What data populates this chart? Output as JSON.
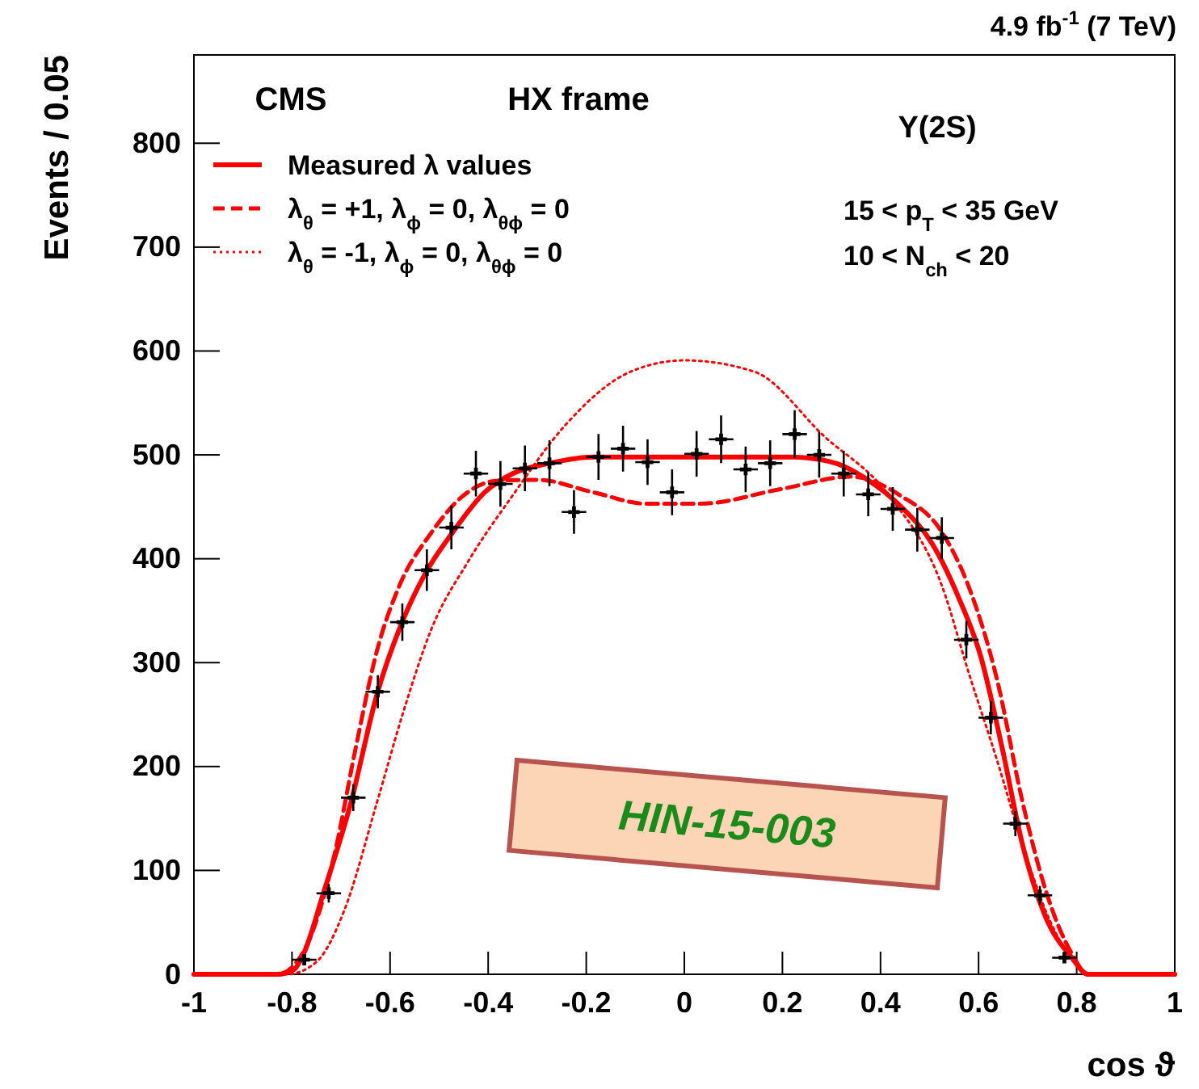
{
  "chart_data": {
    "type": "line",
    "title": "4.9 fb$^{-1}$   (7 TeV)",
    "xlabel": "cos ϑ",
    "ylabel": "Events / 0.05",
    "xlim": [
      -1,
      1
    ],
    "xticks": [
      -1,
      -0.8,
      -0.6,
      -0.4,
      -0.2,
      0,
      0.2,
      0.4,
      0.6,
      0.8,
      1
    ],
    "ylim": [
      0,
      885
    ],
    "yticks": [
      0,
      100,
      200,
      300,
      400,
      500,
      600,
      700,
      800
    ],
    "grid": false,
    "legend": "top left",
    "annotations": [
      "CMS",
      "HX frame",
      "Υ(2S)",
      "15 < p$_{T}$ < 35 GeV",
      "10 < N$_{ch}$ < 20",
      "HIN-15-003"
    ],
    "series": [
      {
        "type": "scatter",
        "color": "#000000",
        "marker": "cross",
        "x": [
          -0.775,
          -0.725,
          -0.675,
          -0.625,
          -0.575,
          -0.525,
          -0.475,
          -0.425,
          -0.375,
          -0.325,
          -0.275,
          -0.225,
          -0.175,
          -0.125,
          -0.075,
          -0.025,
          0.025,
          0.075,
          0.125,
          0.175,
          0.225,
          0.275,
          0.325,
          0.375,
          0.425,
          0.475,
          0.525,
          0.575,
          0.625,
          0.675,
          0.725,
          0.775
        ],
        "values": [
          14,
          78,
          170,
          272,
          339,
          389,
          430,
          482,
          472,
          487,
          492,
          445,
          498,
          506,
          493,
          464,
          501,
          515,
          486,
          492,
          520,
          500,
          482,
          462,
          448,
          428,
          420,
          322,
          247,
          145,
          76,
          16
        ],
        "errors": [
          4,
          9,
          13,
          16,
          18,
          20,
          21,
          22,
          22,
          22,
          22,
          21,
          22,
          22,
          22,
          22,
          22,
          23,
          22,
          22,
          23,
          22,
          22,
          21,
          21,
          21,
          20,
          18,
          16,
          12,
          9,
          4
        ],
        "xerrors": [
          0.025,
          0.025,
          0.025,
          0.025,
          0.025,
          0.025,
          0.025,
          0.025,
          0.025,
          0.025,
          0.025,
          0.025,
          0.025,
          0.025,
          0.025,
          0.025,
          0.025,
          0.025,
          0.025,
          0.025,
          0.025,
          0.025,
          0.025,
          0.025,
          0.025,
          0.025,
          0.025,
          0.025,
          0.025,
          0.025,
          0.025,
          0.025
        ]
      },
      {
        "name": "Measured λ values",
        "color": "#ff0000",
        "line_style": "solid",
        "x": [
          -1,
          -0.83,
          -0.795,
          -0.776,
          -0.736,
          -0.68,
          -0.627,
          -0.578,
          -0.528,
          -0.473,
          -0.407,
          -0.35,
          -0.275,
          -0.186,
          0,
          0.22,
          0.308,
          0.374,
          0.44,
          0.506,
          0.559,
          0.605,
          0.648,
          0.69,
          0.736,
          0.79,
          0.823,
          1
        ],
        "values": [
          0,
          0,
          5,
          20,
          78,
          165,
          269,
          336,
          386,
          425,
          464,
          482,
          492,
          498,
          498,
          498,
          492,
          476,
          451,
          414,
          363,
          305,
          218,
          124,
          56,
          16,
          0,
          0
        ]
      },
      {
        "name": "λ$_{θ}$ = +1,  λ$_{ϕ}$ = 0,  λ$_{θϕ}$ = 0",
        "color": "#ff0000",
        "line_style": "dashed",
        "x": [
          -1,
          -0.83,
          -0.79,
          -0.759,
          -0.714,
          -0.67,
          -0.627,
          -0.582,
          -0.516,
          -0.45,
          -0.384,
          -0.298,
          -0.186,
          -0.077,
          0.032,
          0.196,
          0.34,
          0.44,
          0.526,
          0.58,
          0.637,
          0.69,
          0.736,
          0.79,
          0.823,
          1
        ],
        "values": [
          0,
          0,
          12,
          40,
          114,
          218,
          311,
          373,
          425,
          461,
          475,
          476,
          464,
          453,
          453,
          467,
          479,
          461,
          425,
          373,
          285,
          165,
          82,
          20,
          0,
          0
        ]
      },
      {
        "name": "λ$_{θ}$ = -1,  λ$_{ϕ}$ = 0,  λ$_{θϕ}$ = 0",
        "color": "#ff0000",
        "line_style": "dotted",
        "x": [
          -1,
          -0.81,
          -0.75,
          -0.693,
          -0.627,
          -0.572,
          -0.516,
          -0.44,
          -0.35,
          -0.242,
          -0.11,
          0,
          0.143,
          0.285,
          0.417,
          0.526,
          0.58,
          0.637,
          0.69,
          0.746,
          0.8,
          0.83,
          1
        ],
        "values": [
          0,
          0,
          12,
          62,
          165,
          254,
          332,
          398,
          461,
          529,
          580,
          591,
          580,
          518,
          461,
          373,
          290,
          207,
          124,
          51,
          9,
          0,
          0
        ]
      }
    ]
  }
}
